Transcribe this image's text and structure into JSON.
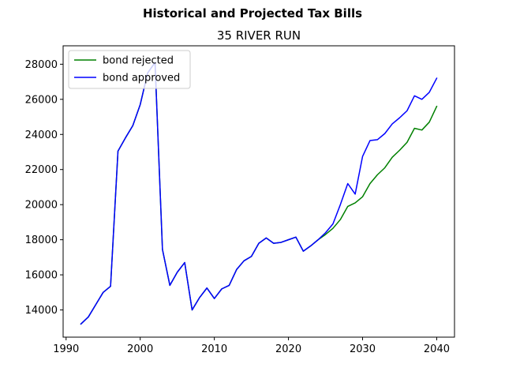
{
  "chart_data": {
    "type": "line",
    "suptitle": "Historical and Projected Tax Bills",
    "title": "35 RIVER RUN",
    "xlabel": "",
    "ylabel": "",
    "xlim": [
      1989.6,
      2042.4
    ],
    "ylim": [
      12450,
      29050
    ],
    "xticks": [
      1990,
      2000,
      2010,
      2020,
      2030,
      2040
    ],
    "yticks": [
      14000,
      16000,
      18000,
      20000,
      22000,
      24000,
      26000,
      28000
    ],
    "grid": false,
    "legend_position": "top-left",
    "series": [
      {
        "name": "bond rejected",
        "color": "#008000",
        "points": [
          [
            1992,
            13200
          ],
          [
            1993,
            13600
          ],
          [
            1994,
            14300
          ],
          [
            1995,
            15000
          ],
          [
            1996,
            15350
          ],
          [
            1997,
            23050
          ],
          [
            1998,
            23800
          ],
          [
            1999,
            24500
          ],
          [
            2000,
            25700
          ],
          [
            2001,
            27500
          ],
          [
            2002,
            28100
          ],
          [
            2003,
            17450
          ],
          [
            2004,
            15400
          ],
          [
            2005,
            16150
          ],
          [
            2006,
            16700
          ],
          [
            2007,
            14000
          ],
          [
            2008,
            14700
          ],
          [
            2009,
            15250
          ],
          [
            2010,
            14650
          ],
          [
            2011,
            15200
          ],
          [
            2012,
            15400
          ],
          [
            2013,
            16300
          ],
          [
            2014,
            16800
          ],
          [
            2015,
            17050
          ],
          [
            2016,
            17800
          ],
          [
            2017,
            18100
          ],
          [
            2018,
            17800
          ],
          [
            2019,
            17850
          ],
          [
            2020,
            18000
          ],
          [
            2021,
            18150
          ],
          [
            2022,
            17350
          ],
          [
            2023,
            17650
          ],
          [
            2024,
            18000
          ],
          [
            2025,
            18300
          ],
          [
            2026,
            18650
          ],
          [
            2027,
            19150
          ],
          [
            2028,
            19900
          ],
          [
            2029,
            20100
          ],
          [
            2030,
            20450
          ],
          [
            2031,
            21200
          ],
          [
            2032,
            21700
          ],
          [
            2033,
            22100
          ],
          [
            2034,
            22700
          ],
          [
            2035,
            23100
          ],
          [
            2036,
            23550
          ],
          [
            2037,
            24350
          ],
          [
            2038,
            24250
          ],
          [
            2039,
            24700
          ],
          [
            2040,
            25600
          ]
        ]
      },
      {
        "name": "bond approved",
        "color": "#0000ff",
        "points": [
          [
            1992,
            13200
          ],
          [
            1993,
            13600
          ],
          [
            1994,
            14300
          ],
          [
            1995,
            15000
          ],
          [
            1996,
            15350
          ],
          [
            1997,
            23050
          ],
          [
            1998,
            23800
          ],
          [
            1999,
            24500
          ],
          [
            2000,
            25700
          ],
          [
            2001,
            27500
          ],
          [
            2002,
            28100
          ],
          [
            2003,
            17450
          ],
          [
            2004,
            15400
          ],
          [
            2005,
            16150
          ],
          [
            2006,
            16700
          ],
          [
            2007,
            14000
          ],
          [
            2008,
            14700
          ],
          [
            2009,
            15250
          ],
          [
            2010,
            14650
          ],
          [
            2011,
            15200
          ],
          [
            2012,
            15400
          ],
          [
            2013,
            16300
          ],
          [
            2014,
            16800
          ],
          [
            2015,
            17050
          ],
          [
            2016,
            17800
          ],
          [
            2017,
            18100
          ],
          [
            2018,
            17800
          ],
          [
            2019,
            17850
          ],
          [
            2020,
            18000
          ],
          [
            2021,
            18150
          ],
          [
            2022,
            17350
          ],
          [
            2023,
            17650
          ],
          [
            2024,
            18000
          ],
          [
            2025,
            18400
          ],
          [
            2026,
            18900
          ],
          [
            2027,
            20000
          ],
          [
            2028,
            21200
          ],
          [
            2029,
            20600
          ],
          [
            2030,
            22750
          ],
          [
            2031,
            23650
          ],
          [
            2032,
            23700
          ],
          [
            2033,
            24050
          ],
          [
            2034,
            24600
          ],
          [
            2035,
            24950
          ],
          [
            2036,
            25350
          ],
          [
            2037,
            26200
          ],
          [
            2038,
            26000
          ],
          [
            2039,
            26400
          ],
          [
            2040,
            27200
          ]
        ]
      }
    ]
  }
}
